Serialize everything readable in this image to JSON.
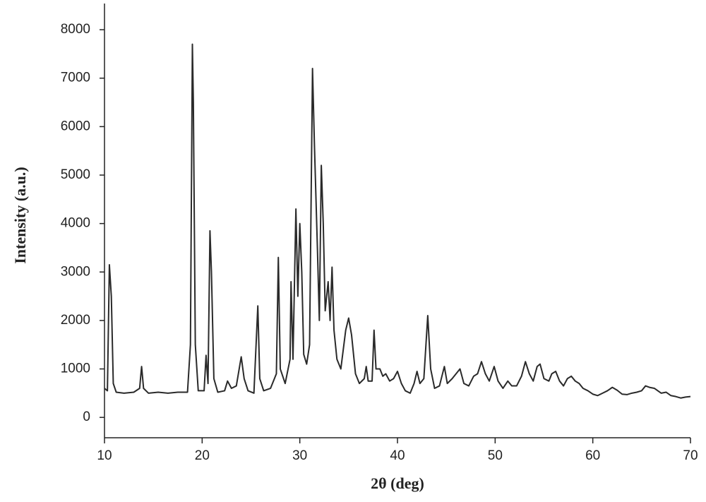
{
  "chart_data": {
    "type": "line",
    "x_label": "2θ (deg)",
    "y_label": "Intensity (a.u.)",
    "xlim": [
      10,
      70
    ],
    "ylim": [
      -420,
      8540
    ],
    "xticks": [
      10,
      20,
      30,
      40,
      50,
      60,
      70
    ],
    "yticks": [
      0,
      1000,
      2000,
      3000,
      4000,
      5000,
      6000,
      7000,
      8000
    ],
    "color": "#2a2a2a",
    "x": [
      10.0,
      10.3,
      10.5,
      10.7,
      10.9,
      11.2,
      12,
      13,
      13.6,
      13.8,
      14.0,
      14.5,
      15.5,
      16.5,
      17.5,
      18.5,
      18.8,
      19.0,
      19.1,
      19.3,
      19.6,
      20.2,
      20.4,
      20.6,
      20.8,
      20.95,
      21.2,
      21.6,
      22.3,
      22.6,
      23.0,
      23.5,
      24.0,
      24.3,
      24.7,
      25.3,
      25.7,
      25.9,
      26.3,
      27.0,
      27.6,
      27.8,
      28.0,
      28.5,
      29.0,
      29.1,
      29.3,
      29.6,
      29.8,
      30.0,
      30.2,
      30.4,
      30.7,
      31.0,
      31.3,
      31.5,
      31.8,
      32.0,
      32.2,
      32.4,
      32.6,
      32.9,
      33.1,
      33.3,
      33.5,
      33.8,
      34.2,
      34.7,
      35.0,
      35.3,
      35.7,
      36.1,
      36.6,
      36.8,
      37.0,
      37.4,
      37.6,
      37.8,
      38.2,
      38.5,
      38.8,
      39.2,
      39.6,
      40.0,
      40.4,
      40.8,
      41.3,
      41.7,
      42.0,
      42.3,
      42.7,
      43.1,
      43.4,
      43.8,
      44.3,
      44.8,
      45.1,
      45.6,
      46.0,
      46.4,
      46.8,
      47.3,
      47.8,
      48.2,
      48.6,
      49.0,
      49.4,
      49.9,
      50.3,
      50.8,
      51.3,
      51.7,
      52.2,
      52.7,
      53.1,
      53.5,
      53.9,
      54.3,
      54.6,
      55.0,
      55.5,
      55.8,
      56.2,
      56.6,
      57.0,
      57.4,
      57.8,
      58.2,
      58.6,
      59.0,
      59.5,
      60.0,
      60.5,
      61.0,
      61.5,
      62.0,
      62.5,
      63.0,
      63.5,
      64.0,
      64.5,
      65.0,
      65.4,
      65.8,
      66.3,
      67.0,
      67.5,
      68.0,
      68.5,
      69.0,
      69.5,
      70.0
    ],
    "values": [
      600,
      550,
      3150,
      2500,
      700,
      520,
      500,
      520,
      600,
      1050,
      600,
      500,
      520,
      500,
      520,
      520,
      1500,
      7700,
      6500,
      1500,
      550,
      550,
      1280,
      700,
      3850,
      3000,
      800,
      520,
      550,
      750,
      600,
      650,
      1250,
      800,
      550,
      500,
      2300,
      800,
      550,
      600,
      900,
      3300,
      1000,
      700,
      1200,
      2800,
      1200,
      4300,
      2500,
      4000,
      3000,
      1300,
      1100,
      1500,
      7200,
      5600,
      3500,
      2000,
      5200,
      4000,
      2200,
      2800,
      2000,
      3100,
      1800,
      1200,
      1000,
      1800,
      2050,
      1700,
      900,
      700,
      800,
      1050,
      750,
      750,
      1800,
      1000,
      1000,
      850,
      900,
      750,
      800,
      950,
      700,
      550,
      500,
      700,
      950,
      700,
      800,
      2100,
      1000,
      600,
      650,
      1050,
      700,
      800,
      900,
      1000,
      700,
      650,
      850,
      900,
      1150,
      900,
      750,
      1050,
      750,
      600,
      750,
      650,
      650,
      850,
      1150,
      900,
      750,
      1050,
      1100,
      800,
      750,
      900,
      950,
      750,
      650,
      800,
      850,
      750,
      700,
      600,
      550,
      480,
      450,
      500,
      550,
      620,
      560,
      480,
      470,
      500,
      520,
      550,
      650,
      620,
      600,
      500,
      520,
      450,
      430,
      400,
      420,
      430
    ]
  }
}
